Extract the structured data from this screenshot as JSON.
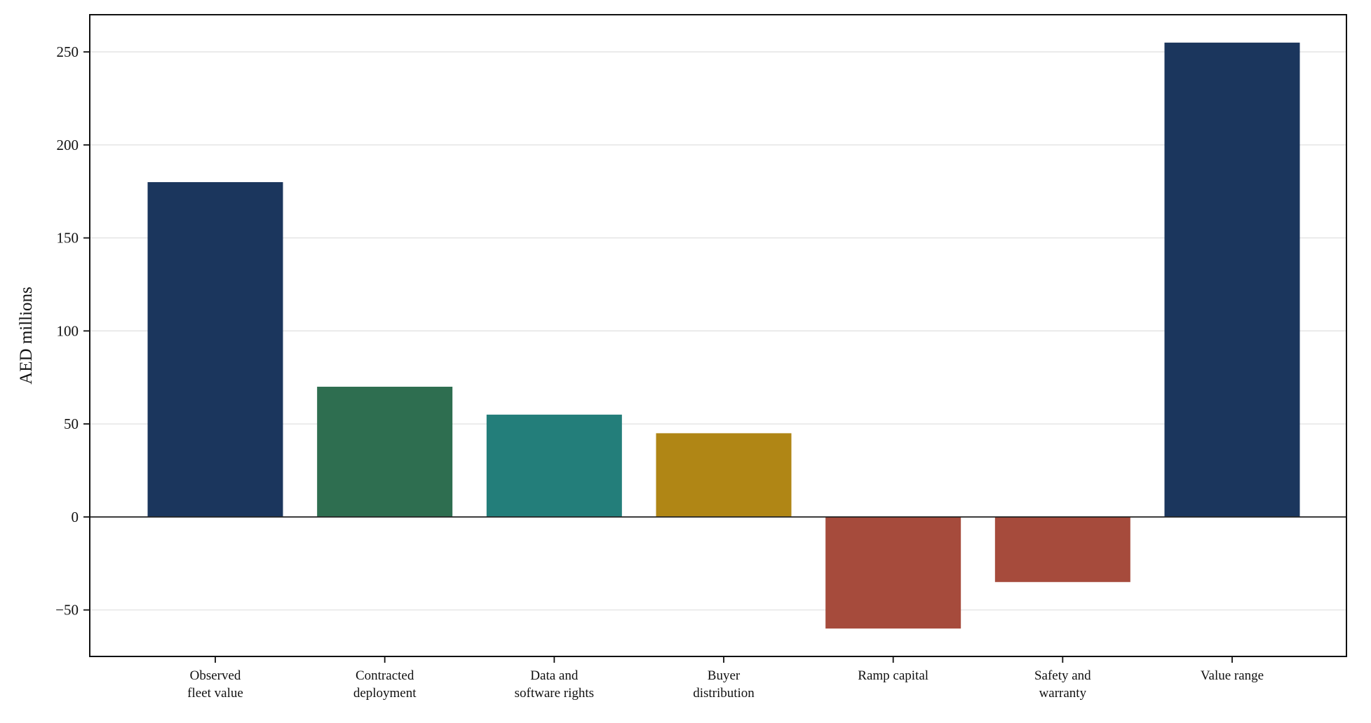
{
  "chart_data": {
    "type": "bar",
    "title": "",
    "xlabel": "",
    "ylabel": "AED millions",
    "ylim": [
      -75,
      270
    ],
    "yticks": [
      -50,
      0,
      50,
      100,
      150,
      200,
      250
    ],
    "ytick_labels": [
      "−50",
      "0",
      "50",
      "100",
      "150",
      "200",
      "250"
    ],
    "grid": true,
    "legend": "none",
    "categories": [
      [
        "Observed",
        "fleet value"
      ],
      [
        "Contracted",
        "deployment"
      ],
      [
        "Data and",
        "software rights"
      ],
      [
        "Buyer",
        "distribution"
      ],
      [
        "Ramp capital"
      ],
      [
        "Safety and",
        "warranty"
      ],
      [
        "Value range"
      ]
    ],
    "values": [
      180,
      70,
      55,
      45,
      -60,
      -35,
      255
    ],
    "colors": [
      "#1b365d",
      "#2e6e50",
      "#237e7a",
      "#b08615",
      "#a64b3c",
      "#a64b3c",
      "#1b365d"
    ]
  }
}
